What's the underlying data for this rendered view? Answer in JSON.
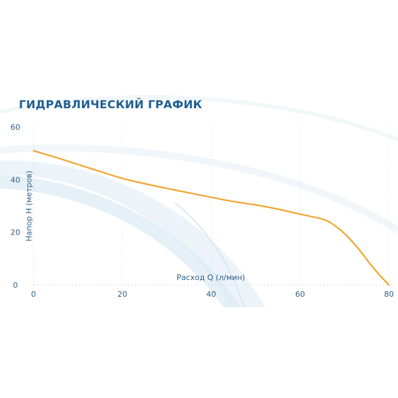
{
  "chart_data": {
    "type": "line",
    "title": "ГИДРАВЛИЧЕСКИЙ ГРАФИК",
    "xlabel": "Расход Q (л/мин)",
    "ylabel": "Напор H (метров)",
    "xlim": [
      0,
      80
    ],
    "ylim": [
      0,
      60
    ],
    "x_ticks": [
      0,
      20,
      40,
      60,
      80
    ],
    "y_ticks": [
      0,
      20,
      40,
      60
    ],
    "grid": "vertical-dashed",
    "series": [
      {
        "color": "#f0a531",
        "points": [
          [
            0,
            51
          ],
          [
            5,
            48.5
          ],
          [
            10,
            45.8
          ],
          [
            15,
            43.1
          ],
          [
            20,
            40.5
          ],
          [
            25,
            38.5
          ],
          [
            30,
            36.7
          ],
          [
            35,
            35.0
          ],
          [
            40,
            33.3
          ],
          [
            45,
            31.7
          ],
          [
            50,
            30.4
          ],
          [
            55,
            28.8
          ],
          [
            60,
            26.9
          ],
          [
            63,
            25.8
          ],
          [
            65,
            25.0
          ],
          [
            67,
            23.5
          ],
          [
            70,
            19.5
          ],
          [
            73,
            14.0
          ],
          [
            76,
            7.5
          ],
          [
            78,
            3.5
          ],
          [
            80,
            0
          ]
        ]
      }
    ]
  }
}
